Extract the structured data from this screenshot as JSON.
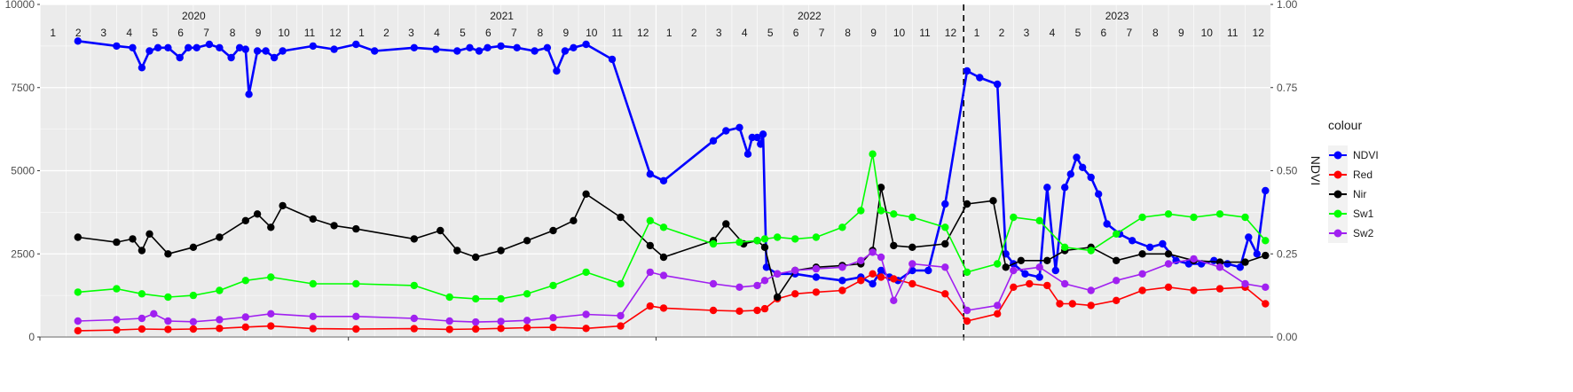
{
  "chart_data": {
    "type": "line",
    "title": "",
    "xlabel": "",
    "ylabel": "",
    "y2label": "NDVI",
    "ylim": [
      0,
      10000
    ],
    "y2lim": [
      0,
      1
    ],
    "yticks": [
      "0",
      "2500",
      "5000",
      "7500",
      "10000"
    ],
    "y2ticks": [
      "0.00",
      "0.25",
      "0.50",
      "0.75",
      "1.00"
    ],
    "xlim": [
      "2020-01-01",
      "2023-12-31"
    ],
    "years": [
      "2020",
      "2021",
      "2022",
      "2023"
    ],
    "months": [
      "1",
      "2",
      "3",
      "4",
      "5",
      "6",
      "7",
      "8",
      "9",
      "10",
      "11",
      "12"
    ],
    "vline": "2023-01-01",
    "grid": true,
    "legend": {
      "title": "colour",
      "position": "right"
    },
    "series": [
      {
        "name": "NDVI",
        "color": "#0000ff",
        "axis": "right",
        "x": [
          "2020-02-15",
          "2020-04-01",
          "2020-04-20",
          "2020-05-01",
          "2020-05-10",
          "2020-05-20",
          "2020-06-01",
          "2020-06-15",
          "2020-06-25",
          "2020-07-05",
          "2020-07-20",
          "2020-08-01",
          "2020-08-15",
          "2020-08-25",
          "2020-09-01",
          "2020-09-05",
          "2020-09-15",
          "2020-09-25",
          "2020-10-05",
          "2020-10-15",
          "2020-11-20",
          "2020-12-15",
          "2021-01-10",
          "2021-02-01",
          "2021-03-20",
          "2021-04-15",
          "2021-05-10",
          "2021-05-25",
          "2021-06-05",
          "2021-06-15",
          "2021-07-01",
          "2021-07-20",
          "2021-08-10",
          "2021-08-25",
          "2021-09-05",
          "2021-09-15",
          "2021-09-25",
          "2021-10-10",
          "2021-11-10",
          "2021-12-25",
          "2022-01-10",
          "2022-03-10",
          "2022-03-25",
          "2022-04-10",
          "2022-04-20",
          "2022-04-25",
          "2022-05-01",
          "2022-05-05",
          "2022-05-08",
          "2022-05-12",
          "2022-05-25",
          "2022-06-15",
          "2022-07-10",
          "2022-08-10",
          "2022-09-01",
          "2022-09-15",
          "2022-09-25",
          "2022-10-05",
          "2022-10-15",
          "2022-11-01",
          "2022-11-20",
          "2022-12-10",
          "2023-01-05",
          "2023-01-20",
          "2023-02-10",
          "2023-02-20",
          "2023-03-01",
          "2023-03-15",
          "2023-04-01",
          "2023-04-10",
          "2023-04-20",
          "2023-05-01",
          "2023-05-08",
          "2023-05-15",
          "2023-05-22",
          "2023-06-01",
          "2023-06-10",
          "2023-06-20",
          "2023-07-05",
          "2023-07-20",
          "2023-08-10",
          "2023-08-25",
          "2023-09-10",
          "2023-09-25",
          "2023-10-10",
          "2023-10-25",
          "2023-11-10",
          "2023-11-25",
          "2023-12-05",
          "2023-12-15",
          "2023-12-25"
        ],
        "y": [
          0.89,
          0.875,
          0.87,
          0.81,
          0.86,
          0.87,
          0.87,
          0.84,
          0.87,
          0.87,
          0.88,
          0.87,
          0.84,
          0.87,
          0.865,
          0.73,
          0.86,
          0.86,
          0.84,
          0.86,
          0.875,
          0.865,
          0.88,
          0.86,
          0.87,
          0.865,
          0.86,
          0.87,
          0.86,
          0.87,
          0.875,
          0.87,
          0.86,
          0.87,
          0.8,
          0.86,
          0.87,
          0.88,
          0.835,
          0.49,
          0.47,
          0.59,
          0.62,
          0.63,
          0.55,
          0.6,
          0.6,
          0.58,
          0.61,
          0.21,
          0.19,
          0.19,
          0.18,
          0.17,
          0.18,
          0.16,
          0.2,
          0.18,
          0.17,
          0.2,
          0.2,
          0.4,
          0.8,
          0.78,
          0.76,
          0.25,
          0.22,
          0.19,
          0.18,
          0.45,
          0.2,
          0.45,
          0.49,
          0.54,
          0.51,
          0.48,
          0.43,
          0.34,
          0.31,
          0.29,
          0.27,
          0.28,
          0.23,
          0.22,
          0.22,
          0.23,
          0.22,
          0.21,
          0.3,
          0.25,
          0.44
        ]
      },
      {
        "name": "Red",
        "color": "#ff0000",
        "axis": "left",
        "x": [
          "2020-02-15",
          "2020-04-01",
          "2020-05-01",
          "2020-06-01",
          "2020-07-01",
          "2020-08-01",
          "2020-09-01",
          "2020-10-01",
          "2020-11-20",
          "2021-01-10",
          "2021-03-20",
          "2021-05-01",
          "2021-06-01",
          "2021-07-01",
          "2021-08-01",
          "2021-09-01",
          "2021-10-10",
          "2021-11-20",
          "2021-12-25",
          "2022-01-10",
          "2022-03-10",
          "2022-04-10",
          "2022-05-01",
          "2022-05-10",
          "2022-05-25",
          "2022-06-15",
          "2022-07-10",
          "2022-08-10",
          "2022-09-01",
          "2022-09-15",
          "2022-09-25",
          "2022-10-10",
          "2022-11-01",
          "2022-12-10",
          "2023-01-05",
          "2023-02-10",
          "2023-03-01",
          "2023-03-20",
          "2023-04-10",
          "2023-04-25",
          "2023-05-10",
          "2023-06-01",
          "2023-07-01",
          "2023-08-01",
          "2023-09-01",
          "2023-10-01",
          "2023-11-01",
          "2023-12-01",
          "2023-12-25"
        ],
        "y": [
          190,
          210,
          240,
          230,
          240,
          260,
          300,
          330,
          250,
          240,
          250,
          230,
          240,
          260,
          280,
          290,
          260,
          330,
          930,
          870,
          800,
          780,
          800,
          850,
          1150,
          1300,
          1350,
          1400,
          1700,
          1900,
          1800,
          1750,
          1600,
          1300,
          480,
          700,
          1500,
          1600,
          1550,
          1000,
          1000,
          950,
          1100,
          1400,
          1500,
          1400,
          1450,
          1500,
          1000
        ]
      },
      {
        "name": "Nir",
        "color": "#000000",
        "axis": "left",
        "x": [
          "2020-02-15",
          "2020-04-01",
          "2020-04-20",
          "2020-05-01",
          "2020-05-10",
          "2020-06-01",
          "2020-07-01",
          "2020-08-01",
          "2020-09-01",
          "2020-09-15",
          "2020-10-01",
          "2020-10-15",
          "2020-11-20",
          "2020-12-15",
          "2021-01-10",
          "2021-03-20",
          "2021-04-20",
          "2021-05-10",
          "2021-06-01",
          "2021-07-01",
          "2021-08-01",
          "2021-09-01",
          "2021-09-25",
          "2021-10-10",
          "2021-11-20",
          "2021-12-25",
          "2022-01-10",
          "2022-03-10",
          "2022-03-25",
          "2022-04-15",
          "2022-05-01",
          "2022-05-10",
          "2022-05-25",
          "2022-06-15",
          "2022-07-10",
          "2022-08-10",
          "2022-09-01",
          "2022-09-15",
          "2022-09-25",
          "2022-10-10",
          "2022-11-01",
          "2022-12-10",
          "2023-01-05",
          "2023-02-05",
          "2023-02-20",
          "2023-03-10",
          "2023-04-10",
          "2023-05-01",
          "2023-06-01",
          "2023-07-01",
          "2023-08-01",
          "2023-09-01",
          "2023-10-01",
          "2023-11-01",
          "2023-12-01",
          "2023-12-25"
        ],
        "y": [
          3000,
          2850,
          2950,
          2600,
          3100,
          2500,
          2700,
          3000,
          3500,
          3700,
          3300,
          3950,
          3550,
          3350,
          3250,
          2950,
          3200,
          2600,
          2400,
          2600,
          2900,
          3200,
          3500,
          4300,
          3600,
          2750,
          2400,
          2900,
          3400,
          2800,
          2900,
          2700,
          1200,
          2000,
          2100,
          2150,
          2200,
          2600,
          4500,
          2750,
          2700,
          2800,
          4000,
          4100,
          2100,
          2300,
          2300,
          2600,
          2700,
          2300,
          2500,
          2500,
          2300,
          2250,
          2250,
          2450
        ]
      },
      {
        "name": "Sw1",
        "color": "#00ff00",
        "axis": "left",
        "x": [
          "2020-02-15",
          "2020-04-01",
          "2020-05-01",
          "2020-06-01",
          "2020-07-01",
          "2020-08-01",
          "2020-09-01",
          "2020-10-01",
          "2020-11-20",
          "2021-01-10",
          "2021-03-20",
          "2021-05-01",
          "2021-06-01",
          "2021-07-01",
          "2021-08-01",
          "2021-09-01",
          "2021-10-10",
          "2021-11-20",
          "2021-12-25",
          "2022-01-10",
          "2022-03-10",
          "2022-04-10",
          "2022-05-01",
          "2022-05-10",
          "2022-05-25",
          "2022-06-15",
          "2022-07-10",
          "2022-08-10",
          "2022-09-01",
          "2022-09-15",
          "2022-09-25",
          "2022-10-10",
          "2022-11-01",
          "2022-12-10",
          "2023-01-05",
          "2023-02-10",
          "2023-03-01",
          "2023-04-01",
          "2023-05-01",
          "2023-06-01",
          "2023-07-01",
          "2023-08-01",
          "2023-09-01",
          "2023-10-01",
          "2023-11-01",
          "2023-12-01",
          "2023-12-25"
        ],
        "y": [
          1350,
          1450,
          1300,
          1200,
          1250,
          1400,
          1700,
          1800,
          1600,
          1600,
          1550,
          1200,
          1150,
          1150,
          1300,
          1550,
          1950,
          1600,
          3500,
          3300,
          2800,
          2850,
          2900,
          2950,
          3000,
          2950,
          3000,
          3300,
          3800,
          5500,
          3800,
          3700,
          3600,
          3300,
          1950,
          2200,
          3600,
          3500,
          2700,
          2600,
          3100,
          3600,
          3700,
          3600,
          3700,
          3600,
          2900
        ]
      },
      {
        "name": "Sw2",
        "color": "#a020f0",
        "axis": "left",
        "x": [
          "2020-02-15",
          "2020-04-01",
          "2020-05-01",
          "2020-05-15",
          "2020-06-01",
          "2020-07-01",
          "2020-08-01",
          "2020-09-01",
          "2020-10-01",
          "2020-11-20",
          "2021-01-10",
          "2021-03-20",
          "2021-05-01",
          "2021-06-01",
          "2021-07-01",
          "2021-08-01",
          "2021-09-01",
          "2021-10-10",
          "2021-11-20",
          "2021-12-25",
          "2022-01-10",
          "2022-03-10",
          "2022-04-10",
          "2022-05-01",
          "2022-05-10",
          "2022-05-25",
          "2022-06-15",
          "2022-07-10",
          "2022-08-10",
          "2022-09-01",
          "2022-09-15",
          "2022-09-25",
          "2022-10-10",
          "2022-11-01",
          "2022-12-10",
          "2023-01-05",
          "2023-02-10",
          "2023-03-01",
          "2023-04-01",
          "2023-05-01",
          "2023-06-01",
          "2023-07-01",
          "2023-08-01",
          "2023-09-01",
          "2023-10-01",
          "2023-11-01",
          "2023-12-01",
          "2023-12-25"
        ],
        "y": [
          480,
          520,
          560,
          700,
          480,
          460,
          520,
          600,
          700,
          620,
          620,
          560,
          480,
          450,
          470,
          500,
          580,
          680,
          640,
          1950,
          1850,
          1600,
          1500,
          1550,
          1700,
          1900,
          2000,
          2050,
          2100,
          2300,
          2550,
          2400,
          1100,
          2200,
          2100,
          800,
          950,
          2000,
          2100,
          1600,
          1400,
          1700,
          1900,
          2200,
          2350,
          2100,
          1600,
          1500
        ]
      }
    ]
  }
}
